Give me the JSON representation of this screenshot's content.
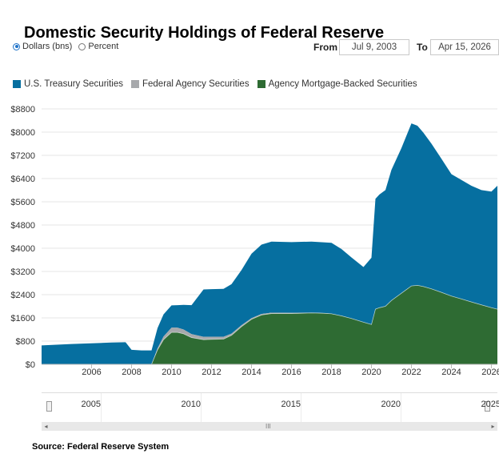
{
  "title": "Domestic Security Holdings of Federal Reserve",
  "units": {
    "dollars_label": "Dollars (bns)",
    "percent_label": "Percent",
    "selected": "dollars"
  },
  "range": {
    "from_label": "From",
    "from_value": "Jul 9, 2003",
    "to_label": "To",
    "to_value": "Apr 15, 2026"
  },
  "colors": {
    "treasury": "#066fa0",
    "agency": "#a7a9ac",
    "mbs": "#2e6b33",
    "grid": "#e4e4e4"
  },
  "legend": [
    {
      "label": "U.S. Treasury Securities",
      "color": "#066fa0"
    },
    {
      "label": "Federal Agency Securities",
      "color": "#a7a9ac"
    },
    {
      "label": "Agency Mortgage-Backed Securities",
      "color": "#2e6b33"
    }
  ],
  "chart_data": {
    "type": "area",
    "stacked": true,
    "title": "Domestic Security Holdings of Federal Reserve",
    "ylabel": "Dollars (bns)",
    "ylim": [
      0,
      8800
    ],
    "xlim": [
      2003.5,
      2026.3
    ],
    "yticks": [
      "$0",
      "$800",
      "$1600",
      "$2400",
      "$3200",
      "$4000",
      "$4800",
      "$5600",
      "$6400",
      "$7200",
      "$8000",
      "$8800"
    ],
    "ytick_values": [
      0,
      800,
      1600,
      2400,
      3200,
      4000,
      4800,
      5600,
      6400,
      7200,
      8000,
      8800
    ],
    "xticks": [
      "2006",
      "2008",
      "2010",
      "2012",
      "2014",
      "2016",
      "2018",
      "2020",
      "2022",
      "2024",
      "2026"
    ],
    "xtick_values": [
      2006,
      2008,
      2010,
      2012,
      2014,
      2016,
      2018,
      2020,
      2022,
      2024,
      2026
    ],
    "x": [
      2003.5,
      2005,
      2007,
      2007.7,
      2008,
      2008.5,
      2009,
      2009.3,
      2009.6,
      2010,
      2010.3,
      2010.6,
      2011,
      2011.6,
      2012,
      2012.6,
      2013,
      2013.5,
      2014,
      2014.5,
      2015,
      2016,
      2017,
      2017.6,
      2018,
      2018.5,
      2019,
      2019.6,
      2020,
      2020.2,
      2020.4,
      2020.7,
      2021,
      2021.5,
      2022,
      2022.3,
      2022.6,
      2023,
      2023.5,
      2024,
      2024.5,
      2025,
      2025.5,
      2026,
      2026.3
    ],
    "series": [
      {
        "name": "U.S. Treasury Securities",
        "values": [
          650,
          700,
          750,
          760,
          500,
          480,
          480,
          700,
          760,
          770,
          780,
          850,
          1000,
          1630,
          1640,
          1650,
          1700,
          1900,
          2220,
          2390,
          2450,
          2440,
          2450,
          2440,
          2440,
          2300,
          2100,
          1900,
          2300,
          3800,
          3900,
          4000,
          4500,
          5000,
          5600,
          5500,
          5300,
          5000,
          4600,
          4200,
          4100,
          4000,
          3950,
          4000,
          4250
        ]
      },
      {
        "name": "Federal Agency Securities",
        "values": [
          0,
          0,
          0,
          0,
          0,
          0,
          0,
          50,
          110,
          160,
          160,
          150,
          120,
          100,
          90,
          80,
          60,
          50,
          40,
          35,
          30,
          20,
          10,
          5,
          5,
          3,
          2,
          2,
          2,
          2,
          2,
          2,
          2,
          2,
          2,
          2,
          2,
          2,
          2,
          2,
          2,
          2,
          2,
          2,
          2
        ]
      },
      {
        "name": "Agency Mortgage-Backed Securities",
        "values": [
          0,
          0,
          0,
          0,
          0,
          0,
          0,
          500,
          850,
          1100,
          1100,
          1050,
          920,
          850,
          860,
          870,
          1000,
          1300,
          1550,
          1700,
          1750,
          1750,
          1770,
          1760,
          1740,
          1670,
          1580,
          1450,
          1370,
          1900,
          1950,
          2000,
          2200,
          2450,
          2700,
          2720,
          2680,
          2600,
          2480,
          2350,
          2250,
          2150,
          2050,
          1950,
          1900
        ]
      }
    ]
  },
  "navigator": {
    "labels": [
      "2005",
      "2010",
      "2015",
      "2020",
      "2025"
    ],
    "label_years": [
      2005,
      2010,
      2015,
      2020,
      2025
    ],
    "grip_glyph": "III",
    "left_arrow": "◂",
    "right_arrow": "▸"
  },
  "source": "Source: Federal Reserve System"
}
